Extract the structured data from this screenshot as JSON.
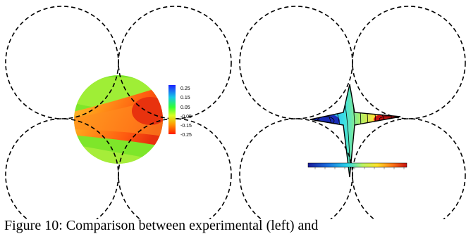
{
  "left_panel": {
    "colorbar_ticks": [
      "0.25",
      "0.15",
      "0.05",
      "-0.05",
      "-0.15",
      "-0.25"
    ]
  },
  "right_panel": {
    "colorbar_ticks": []
  },
  "caption": "Figure 10: Comparison between experimental (left) and"
}
